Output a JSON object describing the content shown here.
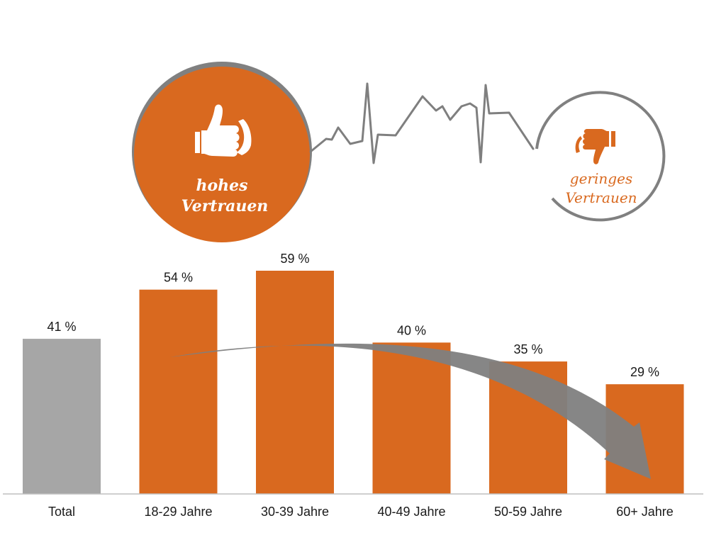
{
  "badges": {
    "high": {
      "line1": "hohes",
      "line2": "Vertrauen"
    },
    "low": {
      "line1": "geringes",
      "line2": "Vertrauen"
    }
  },
  "colors": {
    "orange": "#D9691F",
    "gray_bar": "#A6A6A6",
    "dark_gray": "#7F7F7F",
    "axis": "#BFBFBF"
  },
  "chart_data": {
    "type": "bar",
    "categories": [
      "Total",
      "18-29 Jahre",
      "30-39 Jahre",
      "40-49 Jahre",
      "50-59 Jahre",
      "60+ Jahre"
    ],
    "values": [
      41,
      54,
      59,
      40,
      35,
      29
    ],
    "value_labels": [
      "41 %",
      "54 %",
      "59 %",
      "40 %",
      "35 %",
      "29 %"
    ],
    "unit": "%",
    "ylim": [
      0,
      59
    ],
    "grid": false,
    "legend": "none",
    "highlight": [
      "gray",
      "orange",
      "orange",
      "orange",
      "orange",
      "orange"
    ]
  }
}
